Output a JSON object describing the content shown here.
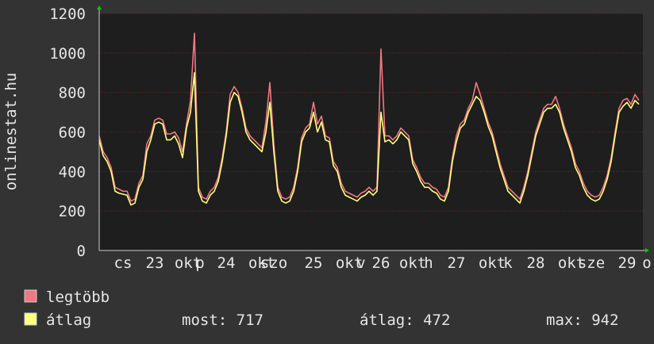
{
  "chart_data": {
    "type": "line",
    "y_label": "onlinestat.hu",
    "ylim": [
      0,
      1200
    ],
    "yticks": [
      0,
      200,
      400,
      600,
      800,
      1000,
      1200
    ],
    "xlim": [
      0,
      137
    ],
    "xticks": [
      {
        "value": 6,
        "label": "cs"
      },
      {
        "value": 14,
        "label": "23"
      },
      {
        "value": 22.4,
        "label": "okt"
      },
      {
        "value": 25.4,
        "label": "p"
      },
      {
        "value": 32,
        "label": "24"
      },
      {
        "value": 41,
        "label": "okt"
      },
      {
        "value": 44,
        "label": "szo"
      },
      {
        "value": 54,
        "label": "25"
      },
      {
        "value": 63,
        "label": "okt"
      },
      {
        "value": 66,
        "label": "v"
      },
      {
        "value": 71,
        "label": "26"
      },
      {
        "value": 79,
        "label": "okt"
      },
      {
        "value": 83,
        "label": "h"
      },
      {
        "value": 90,
        "label": "27"
      },
      {
        "value": 99,
        "label": "okt"
      },
      {
        "value": 103,
        "label": "k"
      },
      {
        "value": 110,
        "label": "28"
      },
      {
        "value": 119,
        "label": "okt"
      },
      {
        "value": 124,
        "label": "sze"
      },
      {
        "value": 133,
        "label": "29"
      },
      {
        "value": 138,
        "label": "o"
      }
    ],
    "grid": true,
    "x": [
      0,
      1,
      2,
      3,
      4,
      5,
      6,
      7,
      8,
      9,
      10,
      11,
      12,
      13,
      14,
      15,
      16,
      17,
      18,
      19,
      20,
      21,
      22,
      23,
      24,
      25,
      26,
      27,
      28,
      29,
      30,
      31,
      32,
      33,
      34,
      35,
      36,
      37,
      38,
      39,
      40,
      41,
      42,
      43,
      44,
      45,
      46,
      47,
      48,
      49,
      50,
      51,
      52,
      53,
      54,
      55,
      56,
      57,
      58,
      59,
      60,
      61,
      62,
      63,
      64,
      65,
      66,
      67,
      68,
      69,
      70,
      71,
      72,
      73,
      74,
      75,
      76,
      77,
      78,
      79,
      80,
      81,
      82,
      83,
      84,
      85,
      86,
      87,
      88,
      89,
      90,
      91,
      92,
      93,
      94,
      95,
      96,
      97,
      98,
      99,
      100,
      101,
      102,
      103,
      104,
      105,
      106,
      107,
      108,
      109,
      110,
      111,
      112,
      113,
      114,
      115,
      116,
      117,
      118,
      119,
      120,
      121,
      122,
      123,
      124,
      125,
      126,
      127,
      128,
      129,
      130,
      131,
      132,
      133,
      134,
      135,
      136
    ],
    "series": [
      {
        "name": "legtöbb",
        "color": "#f07880",
        "values": [
          580,
          500,
          470,
          420,
          320,
          310,
          300,
          300,
          250,
          260,
          340,
          380,
          540,
          580,
          660,
          670,
          660,
          590,
          590,
          600,
          570,
          500,
          640,
          760,
          1100,
          320,
          270,
          260,
          300,
          320,
          370,
          470,
          600,
          790,
          830,
          800,
          720,
          620,
          580,
          560,
          540,
          520,
          650,
          850,
          540,
          320,
          270,
          260,
          270,
          320,
          420,
          570,
          620,
          640,
          750,
          640,
          680,
          580,
          570,
          450,
          420,
          340,
          300,
          290,
          280,
          270,
          290,
          300,
          320,
          300,
          320,
          1020,
          580,
          580,
          560,
          580,
          620,
          600,
          580,
          460,
          420,
          370,
          340,
          340,
          320,
          310,
          280,
          270,
          320,
          470,
          580,
          640,
          660,
          720,
          760,
          850,
          790,
          720,
          650,
          600,
          520,
          440,
          380,
          320,
          300,
          280,
          260,
          320,
          400,
          500,
          600,
          660,
          720,
          740,
          740,
          780,
          720,
          640,
          580,
          520,
          440,
          400,
          340,
          300,
          280,
          270,
          280,
          320,
          380,
          470,
          600,
          720,
          760,
          770,
          740,
          790,
          760
        ]
      },
      {
        "name": "átlag",
        "color": "#ffff80",
        "values": [
          560,
          480,
          450,
          400,
          300,
          290,
          285,
          280,
          230,
          240,
          320,
          360,
          500,
          560,
          640,
          650,
          640,
          560,
          560,
          580,
          540,
          470,
          620,
          700,
          900,
          300,
          250,
          240,
          280,
          300,
          350,
          450,
          580,
          750,
          800,
          780,
          700,
          600,
          560,
          540,
          520,
          500,
          600,
          750,
          500,
          300,
          250,
          240,
          250,
          300,
          400,
          550,
          600,
          620,
          700,
          600,
          650,
          560,
          550,
          430,
          400,
          320,
          280,
          270,
          260,
          250,
          270,
          280,
          300,
          280,
          300,
          700,
          550,
          560,
          540,
          560,
          600,
          580,
          560,
          440,
          400,
          350,
          320,
          320,
          300,
          290,
          260,
          250,
          300,
          450,
          550,
          620,
          640,
          700,
          740,
          780,
          760,
          700,
          630,
          580,
          500,
          420,
          360,
          300,
          280,
          260,
          240,
          300,
          380,
          480,
          580,
          640,
          700,
          720,
          720,
          740,
          700,
          620,
          560,
          500,
          420,
          380,
          320,
          280,
          260,
          250,
          260,
          300,
          360,
          450,
          580,
          700,
          730,
          750,
          720,
          760,
          740
        ]
      }
    ],
    "stats": [
      "most: 717",
      "átlag: 472",
      "max: 942"
    ]
  }
}
